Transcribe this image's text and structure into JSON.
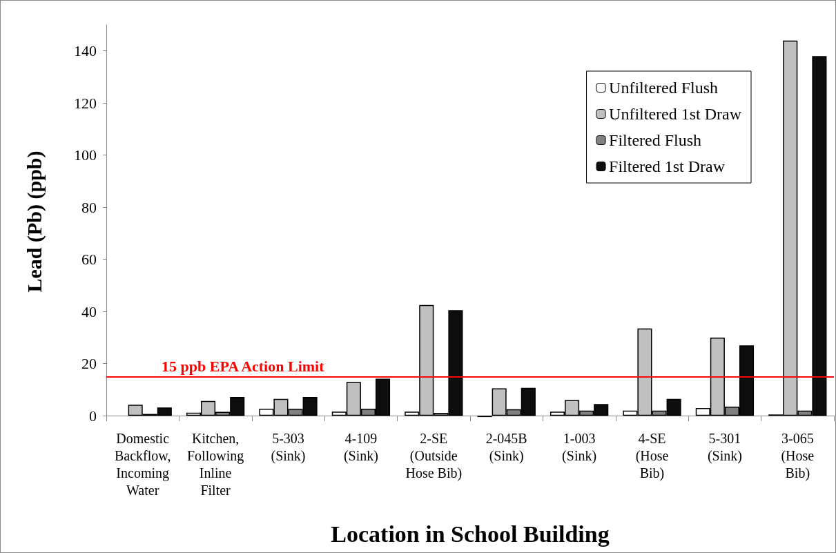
{
  "chart_data": {
    "type": "bar",
    "xlabel": "Location in School Building",
    "ylabel": "Lead (Pb) (ppb)",
    "categories": [
      "Domestic\nBackflow,\nIncoming\nWater",
      "Kitchen,\nFollowing\nInline\nFilter",
      "5-303\n(Sink)",
      "4-109\n(Sink)",
      "2-SE\n(Outside\nHose Bib)",
      "2-045B\n(Sink)",
      "1-003\n(Sink)",
      "4-SE\n(Hose\nBib)",
      "5-301\n(Sink)",
      "3-065\n(Hose\nBib)"
    ],
    "series": [
      {
        "name": "Unfiltered Flush",
        "color": "#ffffff",
        "values": [
          null,
          1.2,
          2.7,
          1.6,
          1.6,
          -0.5,
          1.6,
          2,
          3,
          0.5
        ]
      },
      {
        "name": "Unfiltered 1st Draw",
        "color": "#c0c0c0",
        "values": [
          4.2,
          5.7,
          6.5,
          13,
          42.5,
          10.5,
          6,
          33.5,
          30,
          144
        ]
      },
      {
        "name": "Filtered Flush",
        "color": "#808080",
        "values": [
          0.7,
          1.5,
          2.7,
          2.7,
          1.1,
          2.5,
          2,
          2,
          3.5,
          2
        ]
      },
      {
        "name": "Filtered 1st Draw",
        "color": "#0d0d0d",
        "values": [
          3.2,
          7.2,
          7.2,
          14.2,
          40.5,
          10.7,
          4.5,
          6.5,
          27,
          138
        ]
      }
    ],
    "ylim": [
      -1,
      150
    ],
    "yticks": [
      0,
      20,
      40,
      60,
      80,
      100,
      120,
      140
    ],
    "grid": false,
    "legend": "top right",
    "ref_lines": [
      {
        "axis": "y",
        "value": 15,
        "label": "15 ppb EPA Action Limit",
        "color": "#ff0000"
      }
    ]
  }
}
